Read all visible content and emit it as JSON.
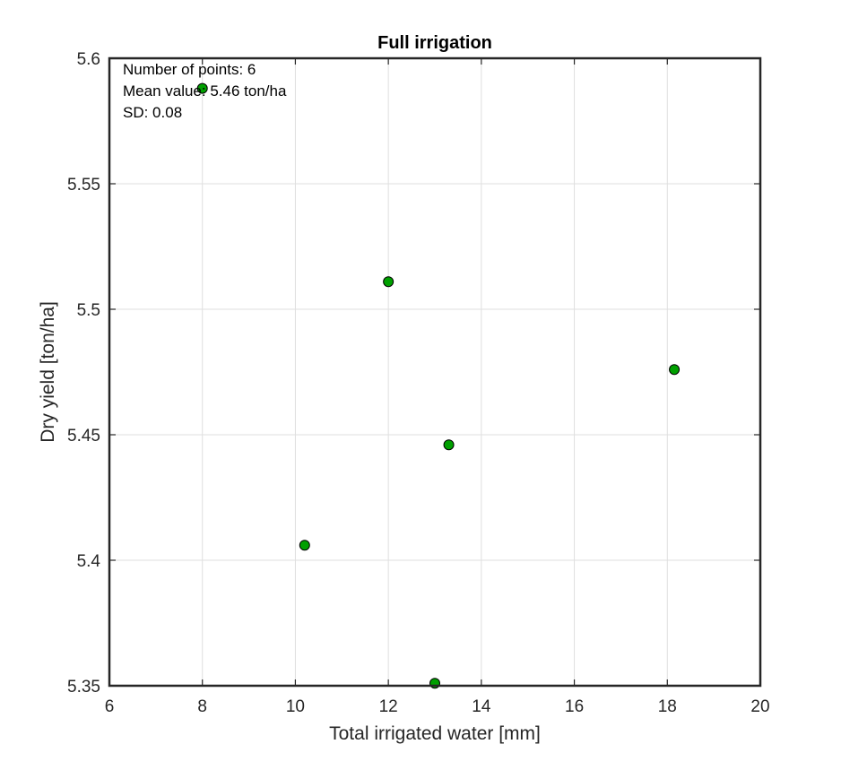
{
  "chart_data": {
    "type": "scatter",
    "title": "Full irrigation",
    "xlabel": "Total irrigated water [mm]",
    "ylabel": "Dry yield [ton/ha]",
    "xlim": [
      6,
      20
    ],
    "ylim": [
      5.35,
      5.6
    ],
    "x_ticks": [
      6,
      8,
      10,
      12,
      14,
      16,
      18,
      20
    ],
    "x_tick_labels": [
      "6",
      "8",
      "10",
      "12",
      "14",
      "16",
      "18",
      "20"
    ],
    "y_ticks": [
      5.35,
      5.4,
      5.45,
      5.5,
      5.55,
      5.6
    ],
    "y_tick_labels": [
      "5.35",
      "5.4",
      "5.45",
      "5.5",
      "5.55",
      "5.6"
    ],
    "grid": true,
    "series": [
      {
        "points": [
          {
            "x": 8.0,
            "y": 5.588
          },
          {
            "x": 12.0,
            "y": 5.511
          },
          {
            "x": 18.15,
            "y": 5.476
          },
          {
            "x": 13.3,
            "y": 5.446
          },
          {
            "x": 10.2,
            "y": 5.406
          },
          {
            "x": 13.0,
            "y": 5.351
          }
        ]
      }
    ],
    "annotations": [
      "Number of points: 6",
      "Mean value: 5.46 ton/ha",
      "SD: 0.08"
    ]
  },
  "colors": {
    "marker_fill": "#00a000",
    "marker_edge": "#000000",
    "grid": "#dfdfdf",
    "axis": "#262626"
  }
}
